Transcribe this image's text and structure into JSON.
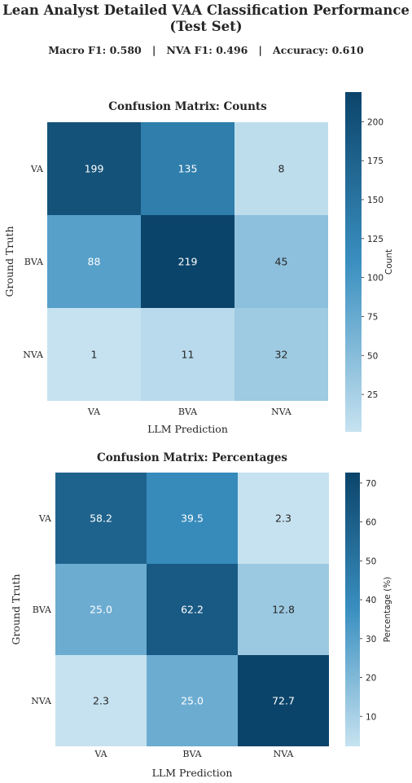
{
  "title_line1": "Lean Analyst Detailed VAA Classification Performance",
  "title_line2": "(Test Set)",
  "metrics": {
    "macro_f1_label": "Macro F1:",
    "macro_f1": "0.580",
    "nva_f1_label": "NVA F1:",
    "nva_f1": "0.496",
    "accuracy_label": "Accuracy:",
    "accuracy": "0.610",
    "separator": "|"
  },
  "colors": {
    "low": "#c6e2f0",
    "mid": "#3a8fc0",
    "high": "#0b446a",
    "text_dark": "#262626",
    "cell_text_light": "#ffffff"
  },
  "chart_data": [
    {
      "type": "heatmap",
      "title": "Confusion Matrix: Counts",
      "xlabel": "LLM Prediction",
      "ylabel": "Ground Truth",
      "x_categories": [
        "VA",
        "BVA",
        "NVA"
      ],
      "y_categories": [
        "VA",
        "BVA",
        "NVA"
      ],
      "values": [
        [
          199,
          135,
          8
        ],
        [
          88,
          219,
          45
        ],
        [
          1,
          11,
          32
        ]
      ],
      "cell_labels": [
        [
          "199",
          "135",
          "8"
        ],
        [
          "88",
          "219",
          "45"
        ],
        [
          "1",
          "11",
          "32"
        ]
      ],
      "colorbar": {
        "label": "Count",
        "range": [
          1,
          219
        ],
        "ticks": [
          25,
          50,
          75,
          100,
          125,
          150,
          175,
          200
        ]
      }
    },
    {
      "type": "heatmap",
      "title": "Confusion Matrix: Percentages",
      "xlabel": "LLM Prediction",
      "ylabel": "Ground Truth",
      "x_categories": [
        "VA",
        "BVA",
        "NVA"
      ],
      "y_categories": [
        "VA",
        "BVA",
        "NVA"
      ],
      "values": [
        [
          58.2,
          39.5,
          2.3
        ],
        [
          25.0,
          62.2,
          12.8
        ],
        [
          2.3,
          25.0,
          72.7
        ]
      ],
      "cell_labels": [
        [
          "58.2",
          "39.5",
          "2.3"
        ],
        [
          "25.0",
          "62.2",
          "12.8"
        ],
        [
          "2.3",
          "25.0",
          "72.7"
        ]
      ],
      "colorbar": {
        "label": "Percentage (%)",
        "range": [
          2.3,
          72.7
        ],
        "ticks": [
          10,
          20,
          30,
          40,
          50,
          60,
          70
        ]
      }
    }
  ]
}
